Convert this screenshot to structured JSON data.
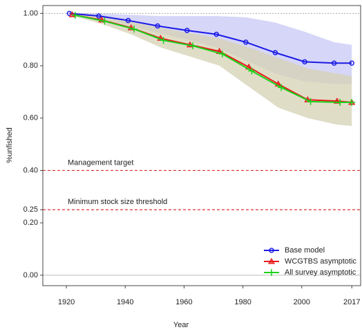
{
  "chart_data": {
    "type": "line",
    "xlabel": "Year",
    "ylabel": "%unfished",
    "xlim": [
      1912,
      2020
    ],
    "ylim": [
      -0.04,
      1.03
    ],
    "xticks": [
      1920,
      1940,
      1960,
      1980,
      2000,
      2017
    ],
    "yticks": [
      {
        "value": 0,
        "label": "0.00"
      },
      {
        "value": 0.2,
        "label": "0.20"
      },
      {
        "value": 0.25,
        "label": "0.25"
      },
      {
        "value": 0.4,
        "label": "0.40"
      },
      {
        "value": 0.6,
        "label": "0.60"
      },
      {
        "value": 0.8,
        "label": "0.80"
      },
      {
        "value": 1,
        "label": "1.00"
      }
    ],
    "legend": "lower right",
    "reference_lines": [
      {
        "value": 1,
        "color": "#aaaaaa",
        "style": "dotted"
      },
      {
        "value": 0.4,
        "label": "Management target",
        "color": "#e03030",
        "style": "dashed"
      },
      {
        "value": 0.25,
        "label": "Minimum stock size threshold",
        "color": "#e03030",
        "style": "dashed"
      },
      {
        "value": 0,
        "color": "#bbbbbb",
        "style": "solid"
      }
    ],
    "series": [
      {
        "name": "Base model",
        "color": "#1a1ae6",
        "marker": "circle",
        "band_color": "#c8c8f5",
        "x": [
          1921,
          1931,
          1941,
          1951,
          1961,
          1971,
          1981,
          1991,
          2001,
          2011,
          2017
        ],
        "values": [
          1.0,
          0.99,
          0.973,
          0.952,
          0.935,
          0.92,
          0.89,
          0.85,
          0.815,
          0.81,
          0.81
        ],
        "upper": [
          1.0,
          1.0,
          0.995,
          0.99,
          0.99,
          0.99,
          0.985,
          0.965,
          0.93,
          0.89,
          0.88
        ],
        "lower": [
          1.0,
          0.985,
          0.955,
          0.925,
          0.9,
          0.87,
          0.82,
          0.77,
          0.74,
          0.73,
          0.73
        ]
      },
      {
        "name": "WCGTBS asymptotic",
        "color": "#e61a1a",
        "marker": "triangle",
        "band_color": "#d6d2b4",
        "x": [
          1922,
          1932,
          1942,
          1952,
          1962,
          1972,
          1982,
          1992,
          2002,
          2012,
          2017
        ],
        "values": [
          0.995,
          0.975,
          0.945,
          0.905,
          0.88,
          0.855,
          0.795,
          0.73,
          0.67,
          0.665,
          0.66
        ],
        "upper": [
          1.0,
          0.99,
          0.97,
          0.945,
          0.925,
          0.905,
          0.87,
          0.83,
          0.79,
          0.77,
          0.76
        ],
        "lower": [
          0.99,
          0.96,
          0.92,
          0.87,
          0.835,
          0.8,
          0.72,
          0.64,
          0.6,
          0.575,
          0.57
        ]
      },
      {
        "name": "All survey asymptotic",
        "color": "#1ad21a",
        "marker": "plus",
        "x": [
          1923,
          1933,
          1943,
          1953,
          1963,
          1973,
          1983,
          1993,
          2003,
          2013,
          2017
        ],
        "values": [
          0.993,
          0.97,
          0.94,
          0.897,
          0.876,
          0.845,
          0.78,
          0.717,
          0.663,
          0.66,
          0.66
        ]
      }
    ]
  }
}
